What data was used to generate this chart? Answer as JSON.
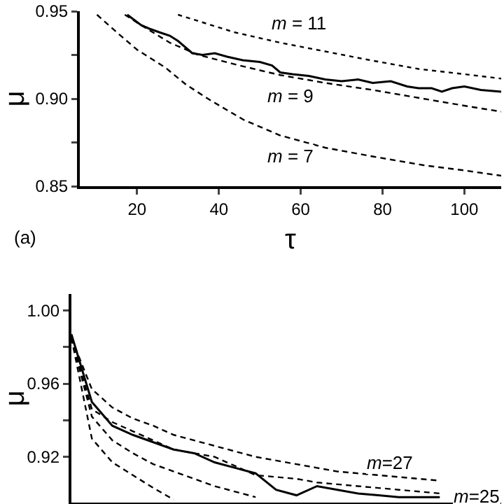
{
  "chart_data": [
    {
      "type": "line",
      "xlabel": "τ",
      "ylabel": "μ",
      "xlim": [
        6,
        109
      ],
      "xticks": [
        20,
        40,
        60,
        80,
        100
      ],
      "ylim": [
        0.85,
        0.95
      ],
      "yticks": [
        0.85,
        {
          "value": 0.875,
          "label": null
        },
        {
          "value": 0.9,
          "label": "0.90"
        },
        {
          "value": 0.925,
          "label": null
        },
        0.95
      ],
      "grid": false,
      "legend": false,
      "annotations": [
        "m = 11",
        "m = 9",
        "m = 7",
        "(a)"
      ],
      "series": [
        {
          "color": "#000000",
          "line_style": "solid",
          "x": [
            17.6,
            21,
            23,
            25.4,
            28,
            30,
            33.5,
            36,
            39,
            42,
            45.8,
            50,
            53,
            55,
            58,
            62,
            66,
            70,
            74,
            77.6,
            82,
            86,
            88.8,
            92,
            94.5,
            97,
            100,
            104,
            109
          ],
          "values": [
            0.948,
            0.942,
            0.94,
            0.938,
            0.936,
            0.933,
            0.926,
            0.925,
            0.926,
            0.924,
            0.922,
            0.921,
            0.919,
            0.915,
            0.914,
            0.913,
            0.911,
            0.91,
            0.911,
            0.909,
            0.91,
            0.907,
            0.906,
            0.906,
            0.904,
            0.906,
            0.907,
            0.905,
            0.904
          ]
        },
        {
          "color": "#000000",
          "line_style": "dotted",
          "x": [
            30,
            43.7,
            55,
            66,
            77,
            88.8,
            100,
            109
          ],
          "values": [
            0.948,
            0.938,
            0.932,
            0.927,
            0.922,
            0.917,
            0.914,
            0.9115
          ]
        },
        {
          "color": "#000000",
          "line_style": "dashed",
          "x": [
            17,
            21,
            28,
            35,
            45,
            55,
            66,
            77.6,
            90,
            100,
            109
          ],
          "values": [
            0.948,
            0.942,
            0.932,
            0.925,
            0.919,
            0.9135,
            0.909,
            0.905,
            0.9,
            0.896,
            0.8926
          ]
        },
        {
          "color": "#000000",
          "line_style": "dashed",
          "x": [
            10.2,
            15,
            20,
            26.8,
            32,
            38,
            46,
            55,
            66,
            77.6,
            90,
            100,
            109
          ],
          "values": [
            0.948,
            0.938,
            0.928,
            0.918,
            0.908,
            0.899,
            0.888,
            0.879,
            0.872,
            0.867,
            0.862,
            0.859,
            0.856
          ]
        }
      ]
    },
    {
      "type": "line",
      "ylabel": "μ",
      "categories": [
        null,
        null,
        null,
        null,
        null,
        null,
        null,
        null,
        null,
        null,
        null,
        null,
        null,
        null,
        null,
        null,
        null,
        null,
        null,
        null,
        null,
        null
      ],
      "ylim": [
        0.895,
        1.009
      ],
      "yticks": [
        0.92,
        {
          "value": 0.94,
          "label": null
        },
        0.96,
        {
          "value": 0.98,
          "label": null
        },
        {
          "value": 1.0,
          "label": "1.00"
        }
      ],
      "tick_labels": "y",
      "grid": false,
      "legend": false,
      "annotations": [
        "m=27",
        "m=25"
      ],
      "series": [
        {
          "color": "#000000",
          "line_style": "solid",
          "values": [
            0.987,
            0.95,
            0.937,
            0.932,
            0.928,
            0.924,
            0.922,
            0.917,
            0.914,
            0.911,
            0.902,
            0.899,
            0.904,
            0.902,
            0.9,
            0.899,
            0.898,
            0.898,
            0.898,
            null,
            null,
            null
          ]
        },
        {
          "color": "#000000",
          "line_style": "dashed",
          "values": [
            0.985,
            0.957,
            0.947,
            0.941,
            0.937,
            0.932,
            0.929,
            0.926,
            0.923,
            0.92,
            0.918,
            0.916,
            0.914,
            0.912,
            0.911,
            0.91,
            0.909,
            0.908,
            0.907,
            null,
            null,
            null
          ]
        },
        {
          "color": "#000000",
          "line_style": "dashed",
          "values": [
            0.985,
            0.946,
            0.939,
            0.934,
            0.929,
            0.924,
            0.922,
            0.92,
            0.915,
            0.91,
            0.909,
            0.908,
            0.906,
            0.905,
            0.904,
            0.903,
            0.902,
            0.901,
            0.9,
            null,
            null,
            null
          ]
        },
        {
          "color": "#000000",
          "line_style": "dashed",
          "values": [
            0.985,
            0.942,
            0.929,
            0.922,
            0.916,
            0.912,
            0.908,
            0.904,
            0.901,
            0.898,
            null,
            null,
            null,
            null,
            null,
            null,
            null,
            null,
            null,
            null,
            null,
            null
          ]
        },
        {
          "color": "#000000",
          "line_style": "dashed",
          "values": [
            0.985,
            0.93,
            0.917,
            0.91,
            0.903,
            0.8966,
            null,
            null,
            null,
            null,
            null,
            null,
            null,
            null,
            null,
            null,
            null,
            null,
            null,
            null,
            null,
            null
          ]
        }
      ]
    }
  ]
}
